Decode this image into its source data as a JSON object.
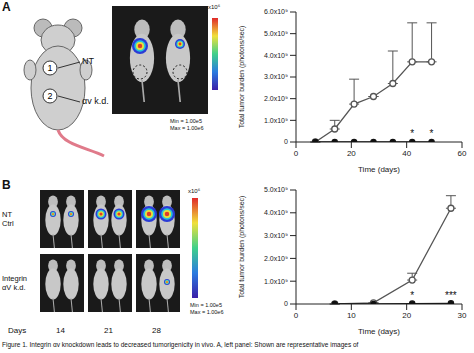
{
  "chart_data": [
    {
      "type": "line",
      "x_label": "Time (days)",
      "y_label": "Total tumor burden (photons/sec)",
      "x": [
        7,
        14,
        21,
        28,
        35,
        42,
        49
      ],
      "xlim": [
        0,
        60
      ],
      "xticks": [
        0,
        20,
        40,
        60
      ],
      "ylim": [
        0,
        6000000000
      ],
      "yticks": [
        0,
        {
          "value": 1000000000,
          "label": "1.0x10⁹"
        },
        {
          "value": 2000000000,
          "label": "2.0x10⁹"
        },
        {
          "value": 3000000000,
          "label": "3.0x10⁹"
        },
        {
          "value": 4000000000,
          "label": "4.0x10⁹"
        },
        {
          "value": 5000000000,
          "label": "5.0x10⁹"
        },
        {
          "value": 6000000000,
          "label": "6.0x10⁹"
        }
      ],
      "series": [
        {
          "color": "#555555",
          "marker": "open_circle",
          "values": [
            0,
            600000000,
            1750000000,
            2100000000,
            2700000000,
            3700000000,
            3700000000
          ],
          "error": [
            0,
            400000000,
            1150000000,
            0,
            1500000000,
            1800000000,
            1800000000
          ]
        },
        {
          "color": "#111111",
          "marker": "filled_circle",
          "values": [
            0,
            0,
            0,
            0,
            0,
            0,
            0
          ]
        }
      ],
      "annotations": [
        {
          "x": 42,
          "text": "*"
        },
        {
          "x": 49,
          "text": "*"
        }
      ]
    },
    {
      "type": "line",
      "x_label": "Time (days)",
      "y_label": "Total tumor burden (photons/sec)",
      "x": [
        7,
        14,
        21,
        28
      ],
      "xlim": [
        0,
        30
      ],
      "xticks": [
        0,
        10,
        20,
        30
      ],
      "ylim": [
        0,
        5000000000
      ],
      "yticks": [
        0,
        {
          "value": 1000000000,
          "label": "1.0x10⁹"
        },
        {
          "value": 2000000000,
          "label": "2.0x10⁹"
        },
        {
          "value": 3000000000,
          "label": "3.0x10⁹"
        },
        {
          "value": 4000000000,
          "label": "4.0x10⁹"
        },
        {
          "value": 5000000000,
          "label": "5.0x10⁹"
        }
      ],
      "series": [
        {
          "color": "#555555",
          "marker": "open_circle",
          "values": [
            0,
            50000000,
            1050000000,
            4200000000
          ],
          "error": [
            0,
            0,
            300000000,
            550000000
          ]
        },
        {
          "color": "#111111",
          "marker": "filled_circle",
          "values": [
            0,
            0,
            20000000,
            30000000
          ]
        }
      ],
      "annotations": [
        {
          "x": 21,
          "text": "*"
        },
        {
          "x": 28,
          "text": "***"
        }
      ]
    }
  ],
  "figure": {
    "panel_labels": [
      "A",
      "B"
    ],
    "diagram": {
      "sites": [
        "1",
        "2"
      ],
      "labels": [
        "NT",
        "αv k.d."
      ]
    },
    "colorbar": {
      "scale_label": "x10⁶",
      "min_label": "Min = 1.00e5",
      "max_label": "Max = 1.00e6"
    },
    "panel_b": {
      "rows": [
        [
          "NT",
          "Ctrl"
        ],
        [
          "Integrin",
          "αV k.d."
        ]
      ],
      "days_label": "Days",
      "days": [
        "14",
        "21",
        "28"
      ]
    },
    "caption": "Figure 1. Integrin αv knockdown leads to decreased tumorigenicity in vivo. A, left panel: Shown are representative images of"
  }
}
